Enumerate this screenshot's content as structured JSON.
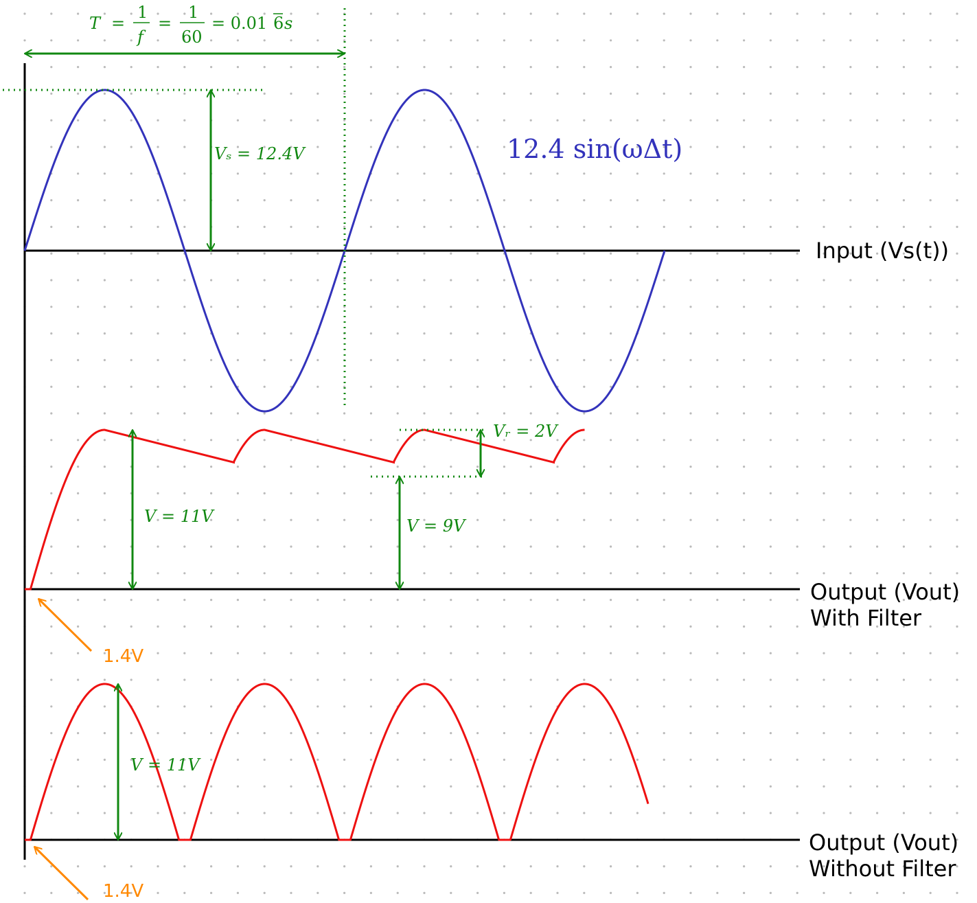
{
  "labels": {
    "input_axis": "Input (Vs(t))",
    "output_filter_line1": "Output (Vout)",
    "output_filter_line2": "With Filter",
    "output_nofilter_line1": "Output (Vout)",
    "output_nofilter_line2": "Without Filter"
  },
  "annotations": {
    "period": {
      "T": "T",
      "eq1": "=",
      "one_a": "1",
      "f": "f",
      "eq2": "=",
      "one_b": "1",
      "sixty": "60",
      "eq3": "= 0.01",
      "six": "6",
      "s": "s"
    },
    "vs_peak": "Vₛ = 12.4V",
    "formula": "12.4 sin(ωΔt)",
    "v_filter_peak": "V = 11V",
    "v_filter_min": "V = 9V",
    "v_ripple": "Vᵣ = 2V",
    "v_nofilter_peak": "V = 11V",
    "diode_drop_filter": "1.4V",
    "diode_drop_nofilter": "1.4V"
  },
  "signals": {
    "input_amplitude_v": 12.4,
    "frequency_hz": 60,
    "cycles_shown": 2,
    "filtered_peak_v": 11,
    "filtered_min_v": 9,
    "ripple_v": 2,
    "diode_drop_v": 1.4
  },
  "colors": {
    "input_wave": "#3333bb",
    "output_wave": "#ee1111",
    "annotation": "#118811",
    "diode_note": "#ff8800",
    "axis": "#000000",
    "grid_dot": "#bbbbbb"
  }
}
